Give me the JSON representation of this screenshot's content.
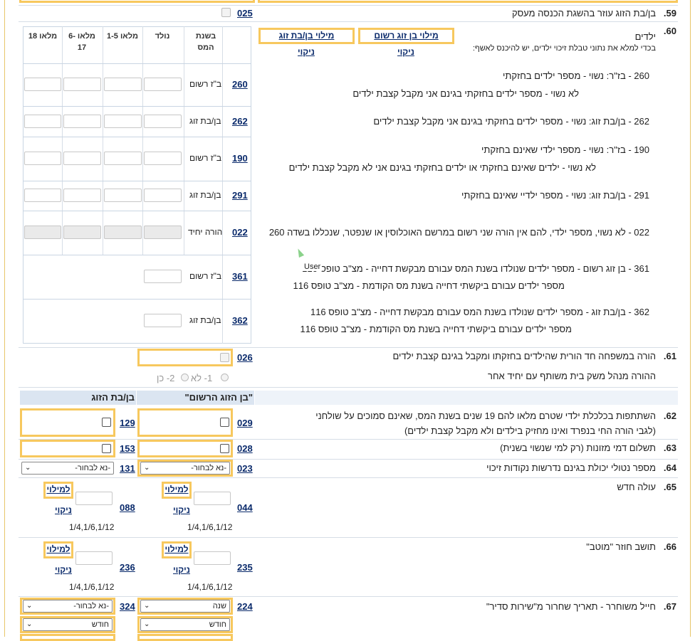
{
  "items": {
    "r59": {
      "num": "59.",
      "label": "בן/בת הזוג עוזר בהשגת הכנסה מעסק",
      "code": "025"
    },
    "r60": {
      "num": "60.",
      "label": "ילדים",
      "note": "בכדי למלא את נתוני טבלת זיכוי ילדים, יש להיכנס לאשף:",
      "btn_registered": "מילוי בן זוג רשום",
      "btn_spouse": "מילוי בן/בת זוג",
      "clear": "ניקוי",
      "col_headers": [
        "בשנת המס",
        "נולד",
        "מלאו 1-5",
        "מלאו 6-17",
        "מלאו 18"
      ],
      "rows": [
        {
          "code": "260",
          "who": "ב\"ז רשום",
          "desc1": "260 - בז\"ר:      נשוי - מספר ילדים בחזקתי",
          "desc2": "לא נשוי - מספר ילדים בחזקתי בגינם אני מקבל קצבת ילדים"
        },
        {
          "code": "262",
          "who": "בן/בת זוג",
          "desc1": "262 - בן/בת זוג:      נשוי - מספר ילדים בחזקתי בגינם אני מקבל קצבת ילדים",
          "desc2": ""
        },
        {
          "code": "190",
          "who": "ב\"ז רשום",
          "desc1": "190 - בז\"ר:   נשוי - מספר ילדי שאינם בחזקתי",
          "desc2": "לא נשוי - ילדים שאינם בחזקתי או ילדים בחזקתי בגינם אני לא מקבל קצבת ילדים"
        },
        {
          "code": "291",
          "who": "בן/בת זוג",
          "desc1": "291 - בן/בת זוג:                       נשוי - מספר ילדיי שאינם בחזקתי",
          "desc2": ""
        },
        {
          "code": "022",
          "who": "הורה יחיד",
          "desc1": "022 - לא נשוי, מספר ילדי, להם אין הורה שני רשום במרשם האוכלוסין או שנפטר, שנכללו בשדה 260",
          "desc2": ""
        },
        {
          "code": "361",
          "who": "ב\"ז רשום",
          "desc1": "361 - בן זוג רשום -      מספר ילדים שנולדו בשנת המס עבורם מבקשת דחייה - מצ\"ב טופס 116",
          "desc2": "מספר ילדים עבורם ביקשתי דחייה בשנת מס הקודמת - מצ\"ב טופס 116"
        },
        {
          "code": "362",
          "who": "בן/בת זוג",
          "desc1": "362 - בן/בת זוג -      מספר ילדים שנולדו בשנת המס עבורם מבקשת דחייה - מצ\"ב טופס 116",
          "desc2": "מספר ילדים עבורם ביקשתי דחייה בשנת מס הקודמת - מצ\"ב טופס 116"
        }
      ],
      "tooltip": "User"
    },
    "r61": {
      "num": "61.",
      "label": "הורה במשפחה חד הורית שהילדים בחזקתו ומקבל בגינם קצבת ילדים",
      "code": "026",
      "sub": "ההורה מנהל משק בית משותף עם יחיד אחר",
      "opt1": "1- לא",
      "opt2": "2- כן"
    },
    "columns": {
      "registered": "\"בן הזוג הרשום\"",
      "spouse": "בן/בת הזוג"
    },
    "r62": {
      "num": "62.",
      "label1": "השתתפות בכלכלת ילדי שטרם מלאו להם 19 שנים בשנת המס, שאינם סמוכים על שולחני",
      "label2": "(לגבי הורה החי בנפרד ואינו מחזיק בילדים ולא מקבל קצבת ילדים)",
      "code_a": "029",
      "code_b": "129"
    },
    "r63": {
      "num": "63.",
      "label": "תשלום דמי מזונות (רק למי שנשוי בשנית)",
      "code_a": "028",
      "code_b": "153"
    },
    "r64": {
      "num": "64.",
      "label": "מספר נטולי יכולת בגינם נדרשות נקודות זיכוי",
      "code_a": "023",
      "code_b": "131",
      "select_value": "-נא לבחור-"
    },
    "r65": {
      "num": "65.",
      "label": "עולה חדש",
      "code_a": "044",
      "code_b": "088",
      "fill": "למילוי",
      "clear": "ניקוי",
      "dates": "1/4,1/6,1/12"
    },
    "r66": {
      "num": "66.",
      "label": "תושב חוזר \"מוטב\"",
      "code_a": "235",
      "code_b": "236",
      "fill": "למילוי",
      "clear": "ניקוי",
      "dates": "1/4,1/6,1/12"
    },
    "r67": {
      "num": "67.",
      "label": "חייל משוחרר - תאריך שחרור מ\"שירות סדיר\"",
      "code_a": "224",
      "code_b": "324",
      "year_a": "שנה",
      "year_b": "-נא לבחור-",
      "month_a": "חודש",
      "month_b": "חודש"
    }
  }
}
